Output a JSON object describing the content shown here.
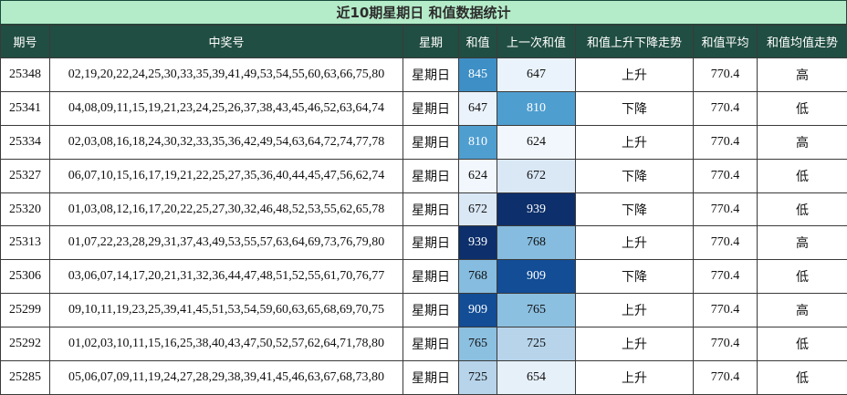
{
  "title": "近10期星期日 和值数据统计",
  "headers": [
    "期号",
    "中奖号",
    "星期",
    "和值",
    "上一次和值",
    "和值上升下降走势",
    "和值平均",
    "和值均值走势"
  ],
  "colors": {
    "title_bg": "#b4ecc9",
    "header_bg": "#214e42",
    "cells": {
      "845": "#3d8fc6",
      "810": "#4f9ed0",
      "624": "#f1f7fd",
      "647": "#eaf3fb",
      "672": "#dae8f6",
      "939": "#0d2f6b",
      "768": "#86bcdf",
      "909": "#124d96",
      "765": "#8cc0e0",
      "725": "#b7d4ea",
      "654": "#e6f0f9"
    }
  },
  "rows": [
    {
      "issue": "25348",
      "numbers": "02,19,20,22,24,25,30,33,35,39,41,49,53,54,55,60,63,66,75,80",
      "weekday": "星期日",
      "sum": "845",
      "prev": "647",
      "trend": "上升",
      "avg": "770.4",
      "hl": "高"
    },
    {
      "issue": "25341",
      "numbers": "04,08,09,11,15,19,21,23,24,25,26,37,38,43,45,46,52,63,64,74",
      "weekday": "星期日",
      "sum": "647",
      "prev": "810",
      "trend": "下降",
      "avg": "770.4",
      "hl": "低"
    },
    {
      "issue": "25334",
      "numbers": "02,03,08,16,18,24,30,32,33,35,36,42,49,54,63,64,72,74,77,78",
      "weekday": "星期日",
      "sum": "810",
      "prev": "624",
      "trend": "上升",
      "avg": "770.4",
      "hl": "高"
    },
    {
      "issue": "25327",
      "numbers": "06,07,10,15,16,17,19,21,22,25,27,35,36,40,44,45,47,56,62,74",
      "weekday": "星期日",
      "sum": "624",
      "prev": "672",
      "trend": "下降",
      "avg": "770.4",
      "hl": "低"
    },
    {
      "issue": "25320",
      "numbers": "01,03,08,12,16,17,20,22,25,27,30,32,46,48,52,53,55,62,65,78",
      "weekday": "星期日",
      "sum": "672",
      "prev": "939",
      "trend": "下降",
      "avg": "770.4",
      "hl": "低"
    },
    {
      "issue": "25313",
      "numbers": "01,07,22,23,28,29,31,37,43,49,53,55,57,63,64,69,73,76,79,80",
      "weekday": "星期日",
      "sum": "939",
      "prev": "768",
      "trend": "上升",
      "avg": "770.4",
      "hl": "高"
    },
    {
      "issue": "25306",
      "numbers": "03,06,07,14,17,20,21,31,32,36,44,47,48,51,52,55,61,70,76,77",
      "weekday": "星期日",
      "sum": "768",
      "prev": "909",
      "trend": "下降",
      "avg": "770.4",
      "hl": "低"
    },
    {
      "issue": "25299",
      "numbers": "09,10,11,19,23,25,39,41,45,51,53,54,59,60,63,65,68,69,70,75",
      "weekday": "星期日",
      "sum": "909",
      "prev": "765",
      "trend": "上升",
      "avg": "770.4",
      "hl": "高"
    },
    {
      "issue": "25292",
      "numbers": "01,02,03,10,11,15,16,25,38,40,43,47,50,52,57,62,64,71,78,80",
      "weekday": "星期日",
      "sum": "765",
      "prev": "725",
      "trend": "上升",
      "avg": "770.4",
      "hl": "低"
    },
    {
      "issue": "25285",
      "numbers": "05,06,07,09,11,19,24,27,28,29,38,39,41,45,46,63,67,68,73,80",
      "weekday": "星期日",
      "sum": "725",
      "prev": "654",
      "trend": "上升",
      "avg": "770.4",
      "hl": "低"
    }
  ]
}
